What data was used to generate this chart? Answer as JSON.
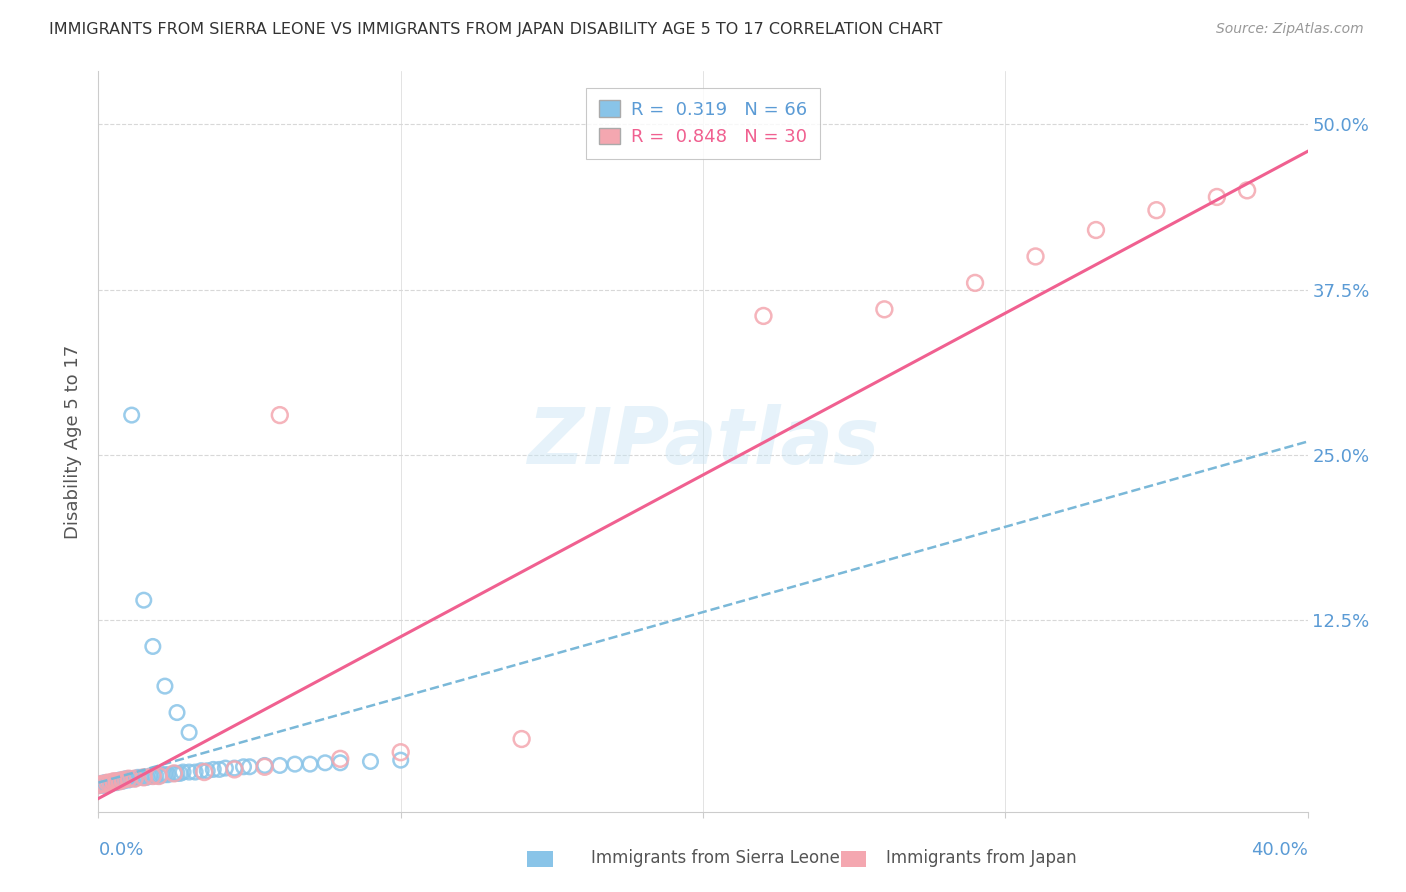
{
  "title": "IMMIGRANTS FROM SIERRA LEONE VS IMMIGRANTS FROM JAPAN DISABILITY AGE 5 TO 17 CORRELATION CHART",
  "source": "Source: ZipAtlas.com",
  "ylabel": "Disability Age 5 to 17",
  "ytick_labels": [
    "12.5%",
    "25.0%",
    "37.5%",
    "50.0%"
  ],
  "ytick_values": [
    0.125,
    0.25,
    0.375,
    0.5
  ],
  "xmin": 0.0,
  "xmax": 0.4,
  "ymin": -0.02,
  "ymax": 0.54,
  "legend1_label": "R =  0.319   N = 66",
  "legend2_label": "R =  0.848   N = 30",
  "sierra_leone_color": "#89c4e8",
  "japan_color": "#f4a7b0",
  "sierra_leone_line_color": "#7ab8d8",
  "japan_line_color": "#f06090",
  "watermark": "ZIPatlas",
  "sl_x": [
    0.0,
    0.0,
    0.0,
    0.0,
    0.001,
    0.001,
    0.002,
    0.002,
    0.002,
    0.003,
    0.003,
    0.004,
    0.004,
    0.005,
    0.005,
    0.006,
    0.006,
    0.007,
    0.007,
    0.008,
    0.008,
    0.009,
    0.009,
    0.01,
    0.01,
    0.011,
    0.012,
    0.013,
    0.014,
    0.015,
    0.016,
    0.017,
    0.018,
    0.019,
    0.02,
    0.021,
    0.022,
    0.023,
    0.025,
    0.026,
    0.027,
    0.028,
    0.03,
    0.032,
    0.034,
    0.036,
    0.038,
    0.04,
    0.042,
    0.045,
    0.048,
    0.05,
    0.055,
    0.06,
    0.065,
    0.07,
    0.075,
    0.08,
    0.09,
    0.1,
    0.011,
    0.015,
    0.018,
    0.022,
    0.026,
    0.03
  ],
  "sl_y": [
    0.0,
    0.0,
    0.0,
    0.001,
    0.0,
    0.001,
    0.0,
    0.001,
    0.002,
    0.001,
    0.002,
    0.001,
    0.002,
    0.002,
    0.003,
    0.002,
    0.003,
    0.003,
    0.004,
    0.003,
    0.004,
    0.004,
    0.005,
    0.004,
    0.005,
    0.005,
    0.005,
    0.006,
    0.006,
    0.006,
    0.006,
    0.007,
    0.007,
    0.007,
    0.007,
    0.008,
    0.008,
    0.008,
    0.009,
    0.009,
    0.009,
    0.01,
    0.01,
    0.01,
    0.011,
    0.011,
    0.012,
    0.012,
    0.013,
    0.013,
    0.014,
    0.014,
    0.015,
    0.015,
    0.016,
    0.016,
    0.017,
    0.017,
    0.018,
    0.019,
    0.28,
    0.14,
    0.105,
    0.075,
    0.055,
    0.04
  ],
  "jp_x": [
    0.0,
    0.001,
    0.002,
    0.003,
    0.004,
    0.005,
    0.006,
    0.007,
    0.008,
    0.01,
    0.012,
    0.015,
    0.018,
    0.02,
    0.025,
    0.06,
    0.14,
    0.22,
    0.26,
    0.29,
    0.31,
    0.33,
    0.35,
    0.37,
    0.38,
    0.035,
    0.045,
    0.055,
    0.08,
    0.1
  ],
  "jp_y": [
    0.0,
    0.001,
    0.001,
    0.002,
    0.002,
    0.003,
    0.003,
    0.003,
    0.004,
    0.005,
    0.005,
    0.006,
    0.007,
    0.007,
    0.009,
    0.28,
    0.035,
    0.355,
    0.36,
    0.38,
    0.4,
    0.42,
    0.435,
    0.445,
    0.45,
    0.01,
    0.012,
    0.014,
    0.02,
    0.025
  ],
  "sl_line_x": [
    0.0,
    0.4
  ],
  "sl_line_y": [
    0.002,
    0.26
  ],
  "jp_line_x": [
    0.0,
    0.38
  ],
  "jp_line_y": [
    -0.01,
    0.455
  ]
}
